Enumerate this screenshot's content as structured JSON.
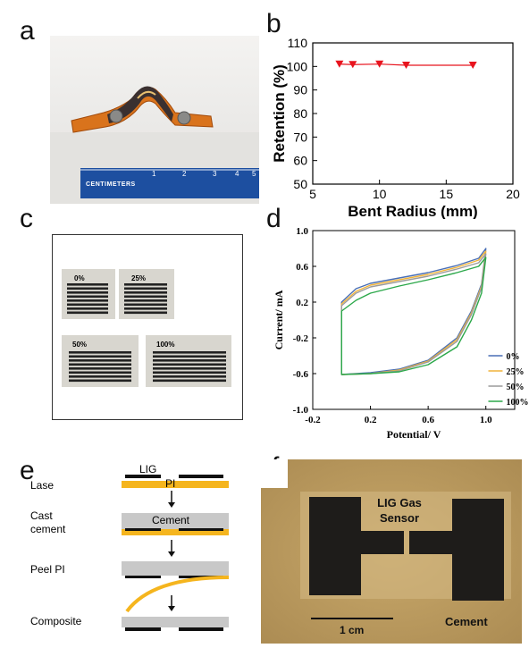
{
  "panels": {
    "a": {
      "letter": "a",
      "ruler_label": "CENTIMETERS",
      "ruler_ticks": [
        "1",
        "2",
        "3",
        "4",
        "5"
      ]
    },
    "b": {
      "letter": "b"
    },
    "c": {
      "letter": "c",
      "labels": [
        "0%",
        "25%",
        "50%",
        "100%"
      ]
    },
    "d": {
      "letter": "d"
    },
    "e": {
      "letter": "e",
      "steps": [
        "Lase",
        "Cast cement",
        "Peel PI",
        "Composite"
      ],
      "lig_label": "LIG",
      "pi_label": "PI",
      "cement_label": "Cement"
    },
    "f": {
      "letter": "f",
      "sensor_label": "LIG Gas Sensor",
      "scale_label": "1 cm",
      "cement_label": "Cement"
    }
  },
  "colors": {
    "series_b": "#e8141e",
    "cv_0": "#4a6fb5",
    "cv_25": "#f0b43c",
    "cv_50": "#9c9c9c",
    "cv_100": "#2ca84a",
    "pi_yellow": "#f5b51e",
    "cement_gray": "#c8c8c8",
    "lig_black": "#111111"
  },
  "chart_data": [
    {
      "type": "line",
      "xlabel": "Bent Radius (mm)",
      "ylabel": "Retention (%)",
      "xlim": [
        5,
        20
      ],
      "ylim": [
        50,
        110
      ],
      "xticks": [
        "5",
        "10",
        "15",
        "20"
      ],
      "yticks": [
        "50",
        "60",
        "70",
        "80",
        "90",
        "100",
        "110"
      ],
      "grid": false,
      "marker": "triangle-down",
      "series": [
        {
          "x": [
            7,
            8,
            10,
            12,
            17
          ],
          "y": [
            101,
            100.8,
            101,
            100.5,
            100.5
          ]
        }
      ]
    },
    {
      "type": "line",
      "xlabel": "Potential/ V",
      "ylabel": "Current/ mA",
      "xlim": [
        -0.2,
        1.2
      ],
      "ylim": [
        -1.0,
        1.0
      ],
      "xticks": [
        "-0.2",
        "0.2",
        "0.6",
        "1.0"
      ],
      "yticks": [
        "1.0",
        "0.6",
        "0.2",
        "-0.2",
        "-0.6",
        "-1.0"
      ],
      "legend_position": "bottom-right",
      "series": [
        {
          "name": "0%",
          "upper": [
            [
              0,
              0.2
            ],
            [
              0.1,
              0.35
            ],
            [
              0.2,
              0.41
            ],
            [
              0.4,
              0.47
            ],
            [
              0.6,
              0.53
            ],
            [
              0.8,
              0.61
            ],
            [
              0.95,
              0.69
            ],
            [
              1.0,
              0.8
            ]
          ],
          "lower": [
            [
              1.0,
              0.8
            ],
            [
              0.97,
              0.4
            ],
            [
              0.9,
              0.1
            ],
            [
              0.8,
              -0.2
            ],
            [
              0.6,
              -0.45
            ],
            [
              0.4,
              -0.55
            ],
            [
              0.2,
              -0.59
            ],
            [
              0,
              -0.61
            ]
          ]
        },
        {
          "name": "25%",
          "upper": [
            [
              0,
              0.18
            ],
            [
              0.1,
              0.32
            ],
            [
              0.2,
              0.39
            ],
            [
              0.4,
              0.45
            ],
            [
              0.6,
              0.51
            ],
            [
              0.8,
              0.59
            ],
            [
              0.95,
              0.67
            ],
            [
              1.0,
              0.77
            ]
          ],
          "lower": [
            [
              1.0,
              0.77
            ],
            [
              0.97,
              0.38
            ],
            [
              0.9,
              0.08
            ],
            [
              0.8,
              -0.22
            ],
            [
              0.6,
              -0.46
            ],
            [
              0.4,
              -0.56
            ],
            [
              0.2,
              -0.6
            ],
            [
              0,
              -0.61
            ]
          ]
        },
        {
          "name": "50%",
          "upper": [
            [
              0,
              0.16
            ],
            [
              0.1,
              0.3
            ],
            [
              0.2,
              0.37
            ],
            [
              0.4,
              0.43
            ],
            [
              0.6,
              0.49
            ],
            [
              0.8,
              0.57
            ],
            [
              0.95,
              0.64
            ],
            [
              1.0,
              0.74
            ]
          ],
          "lower": [
            [
              1.0,
              0.74
            ],
            [
              0.97,
              0.36
            ],
            [
              0.9,
              0.06
            ],
            [
              0.8,
              -0.24
            ],
            [
              0.6,
              -0.47
            ],
            [
              0.4,
              -0.57
            ],
            [
              0.2,
              -0.6
            ],
            [
              0,
              -0.61
            ]
          ]
        },
        {
          "name": "100%",
          "upper": [
            [
              0,
              0.1
            ],
            [
              0.1,
              0.22
            ],
            [
              0.2,
              0.3
            ],
            [
              0.4,
              0.38
            ],
            [
              0.6,
              0.45
            ],
            [
              0.8,
              0.53
            ],
            [
              0.95,
              0.6
            ],
            [
              1.0,
              0.7
            ]
          ],
          "lower": [
            [
              1.0,
              0.7
            ],
            [
              0.97,
              0.3
            ],
            [
              0.9,
              0.0
            ],
            [
              0.8,
              -0.3
            ],
            [
              0.6,
              -0.5
            ],
            [
              0.4,
              -0.58
            ],
            [
              0.2,
              -0.6
            ],
            [
              0,
              -0.61
            ]
          ]
        }
      ]
    }
  ]
}
